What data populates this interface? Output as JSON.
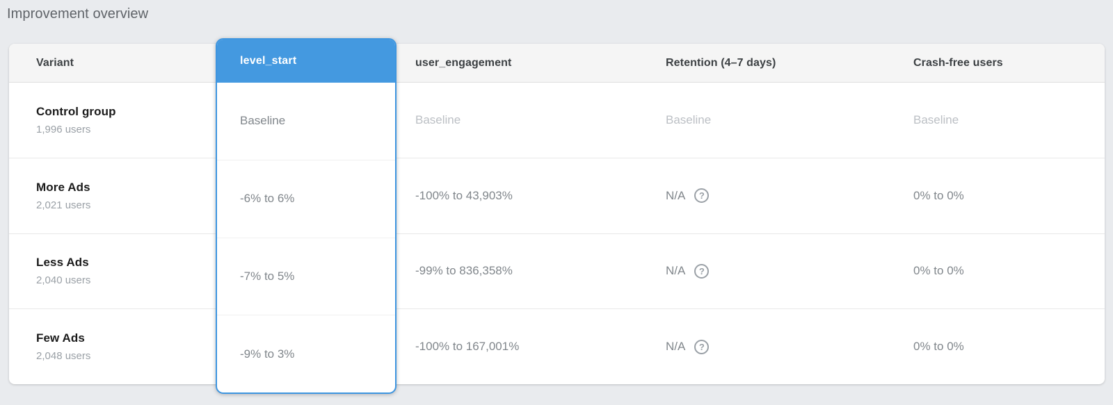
{
  "page": {
    "title": "Improvement overview"
  },
  "table": {
    "columns": {
      "variant": "Variant",
      "level_start": "level_start",
      "user_engagement": "user_engagement",
      "retention": "Retention (4–7 days)",
      "crash_free": "Crash-free users"
    },
    "selected_column": "level_start",
    "help_icon_glyph": "?",
    "rows": [
      {
        "variant": "Control group",
        "users": "1,996 users",
        "level_start": "Baseline",
        "user_engagement": "Baseline",
        "retention": "Baseline",
        "crash_free": "Baseline"
      },
      {
        "variant": "More Ads",
        "users": "2,021 users",
        "level_start": "-6% to 6%",
        "user_engagement": "-100% to 43,903%",
        "retention": "N/A",
        "crash_free": "0% to 0%"
      },
      {
        "variant": "Less Ads",
        "users": "2,040 users",
        "level_start": "-7% to 5%",
        "user_engagement": "-99% to 836,358%",
        "retention": "N/A",
        "crash_free": "0% to 0%"
      },
      {
        "variant": "Few Ads",
        "users": "2,048 users",
        "level_start": "-9% to 3%",
        "user_engagement": "-100% to 167,001%",
        "retention": "N/A",
        "crash_free": "0% to 0%"
      }
    ]
  },
  "colors": {
    "selected_column_fill": "#4499e0",
    "selected_column_border": "#3d95e0",
    "page_background": "#e9ebee",
    "header_background": "#f5f5f5",
    "value_text": "#80868b",
    "baseline_text": "#bbbfc4",
    "variant_text": "#1b1b1b"
  }
}
